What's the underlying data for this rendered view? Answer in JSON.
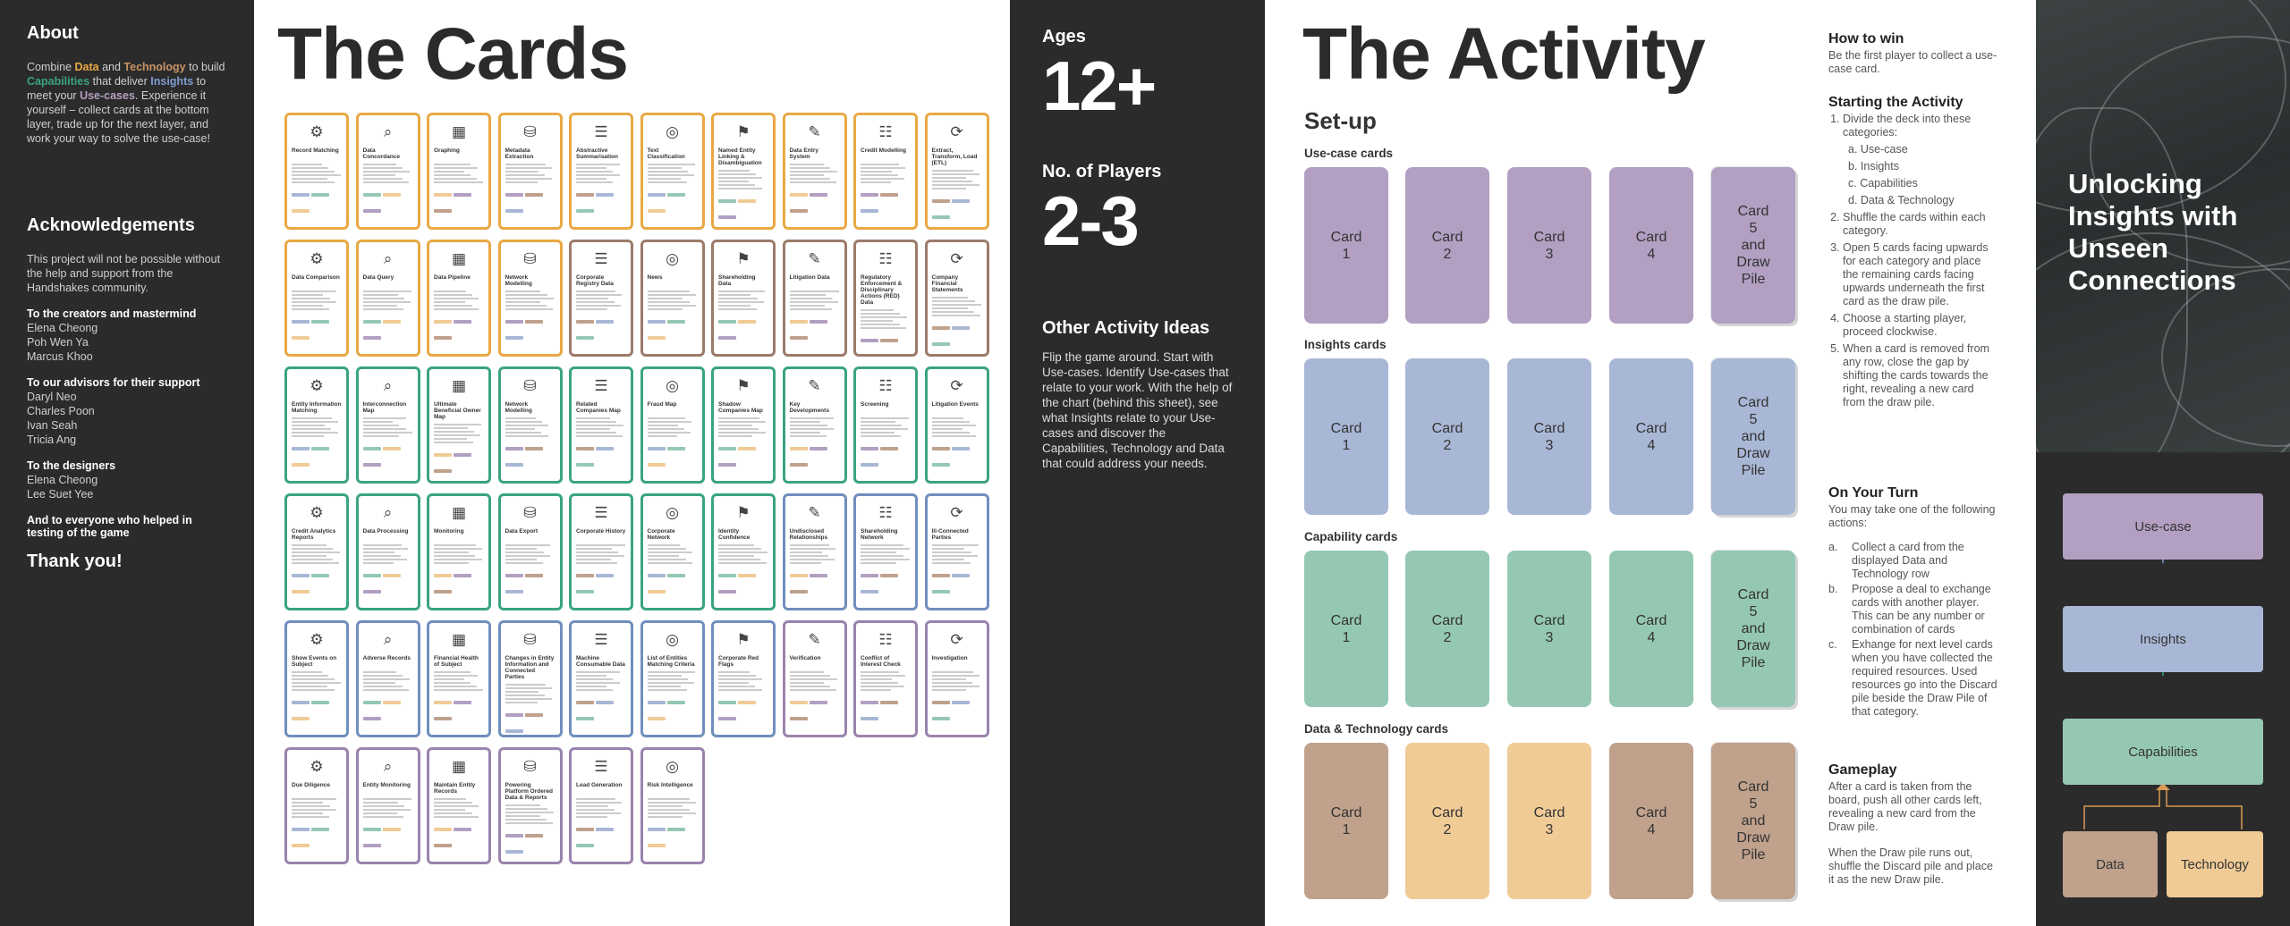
{
  "left": {
    "about_heading": "About",
    "about_parts": [
      "Combine ",
      "Data",
      " and ",
      "Technology",
      " to build ",
      "Capabilities",
      " that deliver ",
      "Insights",
      " to meet your ",
      "Use-cases",
      ". Experience it yourself – collect cards at the bottom layer, trade up for the next layer, and work your way to solve the use-case!"
    ],
    "ack_heading": "Acknowledgements",
    "ack_intro": "This project will not be possible without the help and support from the Handshakes community.",
    "groups": [
      {
        "heading": "To the creators and mastermind",
        "names": [
          "Elena Cheong",
          "Poh Wen Ya",
          "Marcus Khoo"
        ]
      },
      {
        "heading": "To our advisors for their support",
        "names": [
          "Daryl Neo",
          "Charles Poon",
          "Ivan Seah",
          "Tricia Ang"
        ]
      },
      {
        "heading": "To the designers",
        "names": [
          "Elena Cheong",
          "Lee Suet Yee"
        ]
      },
      {
        "heading": "And to everyone who helped in testing of the game",
        "names": []
      }
    ],
    "thanks": "Thank you!"
  },
  "cards_panel": {
    "title": "The Cards",
    "cards": [
      {
        "t": "Record Matching",
        "c": "#e9a845"
      },
      {
        "t": "Data Concordance",
        "c": "#e9a845"
      },
      {
        "t": "Graphing",
        "c": "#e9a845"
      },
      {
        "t": "Metadata Extraction",
        "c": "#e9a845"
      },
      {
        "t": "Abstractive Summarisation",
        "c": "#e9a845"
      },
      {
        "t": "Text Classification",
        "c": "#e9a845"
      },
      {
        "t": "Named Entity Linking & Disambiguation",
        "c": "#e9a845"
      },
      {
        "t": "Data Entry System",
        "c": "#e9a845"
      },
      {
        "t": "Credit Modelling",
        "c": "#e9a845"
      },
      {
        "t": "Extract, Transform, Load (ETL)",
        "c": "#e9a845"
      },
      {
        "t": "Data Comparison",
        "c": "#e9a845"
      },
      {
        "t": "Data Query",
        "c": "#e9a845"
      },
      {
        "t": "Data Pipeline",
        "c": "#e9a845"
      },
      {
        "t": "Network Modelling",
        "c": "#e9a845"
      },
      {
        "t": "Corporate Registry Data",
        "c": "#9c7b6a"
      },
      {
        "t": "News",
        "c": "#9c7b6a"
      },
      {
        "t": "Shareholding Data",
        "c": "#9c7b6a"
      },
      {
        "t": "Litigation Data",
        "c": "#9c7b6a"
      },
      {
        "t": "Regulatory Enforcement & Disciplinary Actions (RED) Data",
        "c": "#9c7b6a"
      },
      {
        "t": "Company Financial Statements",
        "c": "#9c7b6a"
      },
      {
        "t": "Entity Information Matching",
        "c": "#3aa383"
      },
      {
        "t": "Interconnection Map",
        "c": "#3aa383"
      },
      {
        "t": "Ultimate Beneficial Owner Map",
        "c": "#3aa383"
      },
      {
        "t": "Network Modelling",
        "c": "#3aa383"
      },
      {
        "t": "Related Companies Map",
        "c": "#3aa383"
      },
      {
        "t": "Fraud Map",
        "c": "#3aa383"
      },
      {
        "t": "Shadow Companies Map",
        "c": "#3aa383"
      },
      {
        "t": "Key Developments",
        "c": "#3aa383"
      },
      {
        "t": "Screening",
        "c": "#3aa383"
      },
      {
        "t": "Litigation Events",
        "c": "#3aa383"
      },
      {
        "t": "Credit Analytics Reports",
        "c": "#3aa383"
      },
      {
        "t": "Data Processing",
        "c": "#3aa383"
      },
      {
        "t": "Monitoring",
        "c": "#3aa383"
      },
      {
        "t": "Data Export",
        "c": "#3aa383"
      },
      {
        "t": "Corporate History",
        "c": "#3aa383"
      },
      {
        "t": "Corporate Network",
        "c": "#3aa383"
      },
      {
        "t": "Identity Confidence",
        "c": "#3aa383"
      },
      {
        "t": "Undisclosed Relationships",
        "c": "#6f8fbd"
      },
      {
        "t": "Shareholding Network",
        "c": "#6f8fbd"
      },
      {
        "t": "Ill-Connected Parties",
        "c": "#6f8fbd"
      },
      {
        "t": "Show Events on Subject",
        "c": "#6f8fbd"
      },
      {
        "t": "Adverse Records",
        "c": "#6f8fbd"
      },
      {
        "t": "Financial Health of Subject",
        "c": "#6f8fbd"
      },
      {
        "t": "Changes in Entity Information and Connected Parties",
        "c": "#6f8fbd"
      },
      {
        "t": "Machine Consumable Data",
        "c": "#6f8fbd"
      },
      {
        "t": "List of Entities Matching Criteria",
        "c": "#6f8fbd"
      },
      {
        "t": "Corporate Red Flags",
        "c": "#6f8fbd"
      },
      {
        "t": "Verification",
        "c": "#9a83ad"
      },
      {
        "t": "Conflict of Interest Check",
        "c": "#9a83ad"
      },
      {
        "t": "Investigation",
        "c": "#9a83ad"
      },
      {
        "t": "Due Diligence",
        "c": "#9a83ad"
      },
      {
        "t": "Entity Monitoring",
        "c": "#9a83ad"
      },
      {
        "t": "Maintain Entity Records",
        "c": "#9a83ad"
      },
      {
        "t": "Powering Platform Ordered Data & Reports",
        "c": "#9a83ad"
      },
      {
        "t": "Lead Generation",
        "c": "#9a83ad"
      },
      {
        "t": "Risk Intelligence",
        "c": "#9a83ad"
      }
    ]
  },
  "mid": {
    "ages_label": "Ages",
    "ages_value": "12+",
    "players_label": "No. of Players",
    "players_value": "2-3",
    "other_heading": "Other Activity Ideas",
    "other_text": "Flip the game around. Start with Use-cases. Identify Use-cases that relate to your work. With the help of the chart (behind this sheet), see what Insights relate to your Use-cases and discover the Capabilities, Technology and Data that could address your needs."
  },
  "activity": {
    "title": "The Activity",
    "setup": "Set-up",
    "rows": [
      {
        "label": "Use-case cards",
        "colors": [
          "#b29fc2",
          "#b29fc2",
          "#b29fc2",
          "#b29fc2",
          "#b29fc2"
        ]
      },
      {
        "label": "Insights cards",
        "colors": [
          "#a8b7d5",
          "#a8b7d5",
          "#a8b7d5",
          "#a8b7d5",
          "#a8b7d5"
        ]
      },
      {
        "label": "Capability cards",
        "colors": [
          "#95c8b3",
          "#95c8b3",
          "#95c8b3",
          "#95c8b3",
          "#95c8b3"
        ]
      },
      {
        "label": "Data & Technology cards",
        "colors": [
          "#bfa18c",
          "#f0cb96",
          "#f0cb96",
          "#bfa18c",
          "#bfa18c"
        ]
      }
    ],
    "card_labels": [
      "Card\n1",
      "Card\n2",
      "Card\n3",
      "Card\n4",
      "Card\n5\nand\nDraw\nPile"
    ],
    "how_to_win_h": "How to win",
    "how_to_win": "Be the first player to collect a use-case card.",
    "starting_h": "Starting the Activity",
    "step1": "Divide the deck into these categories:",
    "categories": [
      "a.  Use-case",
      "b.  Insights",
      "c.  Capabilities",
      "d.  Data & Technology"
    ],
    "steps": [
      "Shuffle the cards within each category.",
      "Open 5 cards facing upwards for each category and place the remaining cards facing upwards underneath the first card as the draw pile.",
      "Choose a starting player, proceed clockwise.",
      "When a card is removed from any row, close the gap by shifting the cards towards the right, revealing a new card from the draw pile."
    ],
    "turn_h": "On Your Turn",
    "turn_intro": "You may take one of the following actions:",
    "turn_actions": [
      {
        "m": "a.",
        "t": "Collect a card from the displayed Data and Technology row"
      },
      {
        "m": "b.",
        "t": "Propose a deal to exchange cards with another player. This can be any number or combination of cards"
      },
      {
        "m": "c.",
        "t": "Exhange for next level cards when you have collected the required resources. Used resources go into the Discard pile beside the Draw Pile of that category."
      }
    ],
    "gameplay_h": "Gameplay",
    "gameplay1": "After a card is taken from the board, push all other cards left, revealing a new card from the Draw pile.",
    "gameplay2": "When the Draw pile runs out, shuffle the Discard pile and place it as the new Draw pile."
  },
  "right": {
    "title": "Unlocking Insights with Unseen Connections",
    "flow": {
      "usecase": "Use-case",
      "insights": "Insights",
      "capabilities": "Capabilities",
      "data": "Data",
      "technology": "Technology"
    },
    "colors": {
      "usecase": "#b29fc2",
      "insights": "#a8b7d5",
      "capabilities": "#95c8b3",
      "data": "#bfa18c",
      "technology": "#f0cb96"
    }
  }
}
